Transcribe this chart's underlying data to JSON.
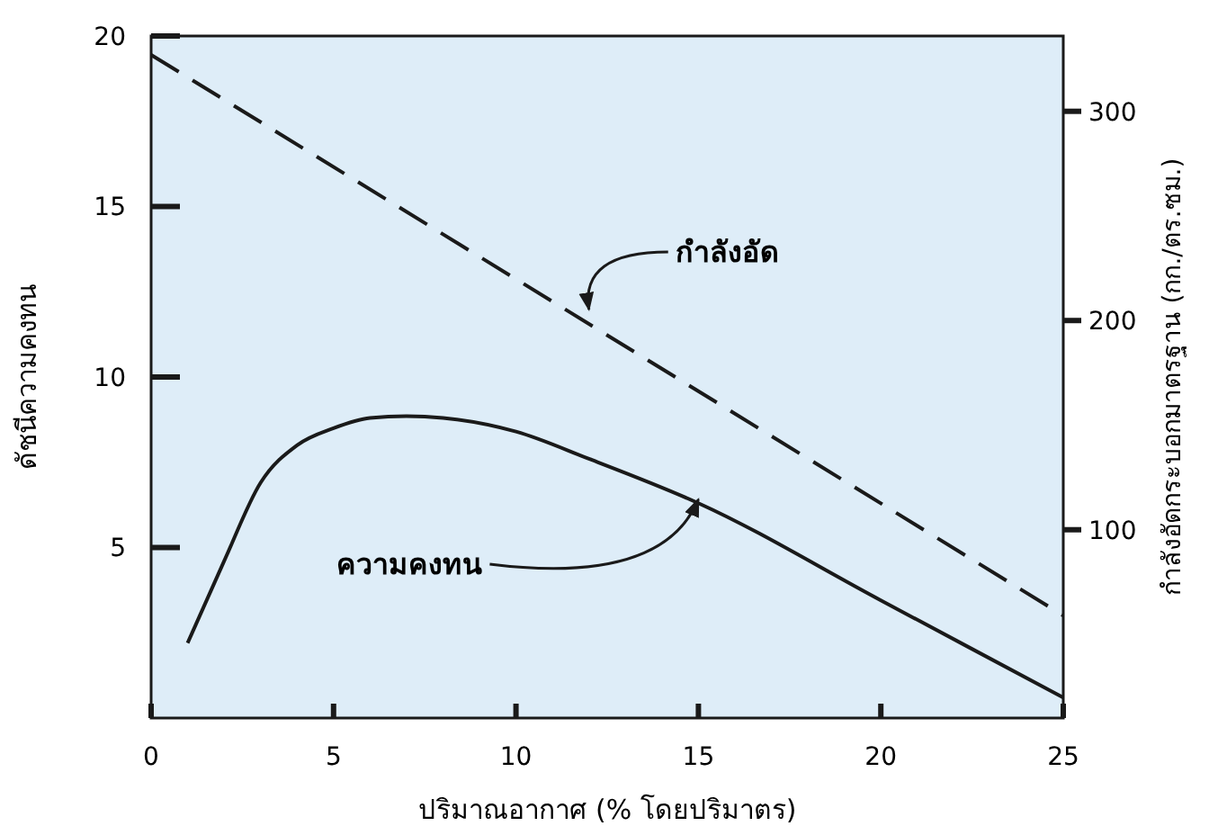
{
  "chart_data": {
    "type": "line",
    "xlabel": "ปริมาณอากาศ (% โดยปริมาตร)",
    "ylabel": "ดัชนีความคงทน",
    "y2label": "กำลังอัดกระบอกมาตรฐาน (กก./ตร.ซม.)",
    "xlim": [
      0,
      25
    ],
    "xticks": [
      0,
      5,
      10,
      15,
      20,
      25
    ],
    "ylim": [
      0,
      20
    ],
    "yticks": [
      5,
      10,
      15,
      20
    ],
    "y2lim": [
      10,
      336
    ],
    "y2ticks": [
      100,
      200,
      300
    ],
    "series": [
      {
        "color": "#1a1a1a",
        "line_style": "solid",
        "x": [
          1,
          2,
          3,
          4,
          5,
          6,
          7,
          8,
          10,
          12,
          15,
          20,
          25
        ],
        "values": [
          2.2,
          4.6,
          6.9,
          8.0,
          8.5,
          8.8,
          8.85,
          8.8,
          8.4,
          7.6,
          6.3,
          3.45,
          0.6
        ]
      },
      {
        "color": "#1a1a1a",
        "line_style": "dashed",
        "axis": "y2",
        "x": [
          0,
          25
        ],
        "values": [
          327,
          59
        ]
      }
    ],
    "annotations": [
      "กำลังอัด",
      {
        "text": "ความคงทน",
        "x": 15,
        "y": 6.2
      }
    ],
    "grid": false
  }
}
